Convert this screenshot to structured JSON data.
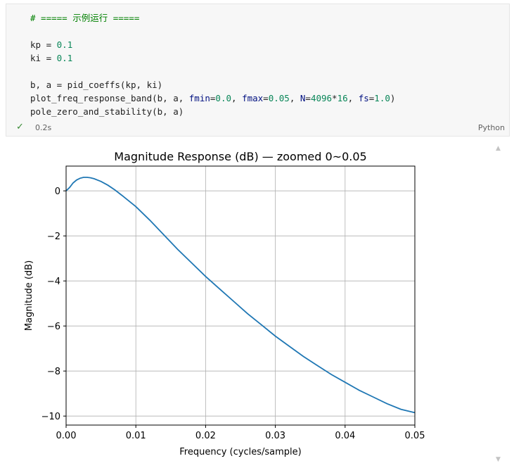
{
  "code_cell": {
    "lines": [
      [
        {
          "t": "# ===== 示例运行 =====",
          "c": "tok-comment"
        }
      ],
      [],
      [
        {
          "t": "kp",
          "c": ""
        },
        {
          "t": " = ",
          "c": "tok-op"
        },
        {
          "t": "0.1",
          "c": "tok-num"
        }
      ],
      [
        {
          "t": "ki",
          "c": ""
        },
        {
          "t": " = ",
          "c": "tok-op"
        },
        {
          "t": "0.1",
          "c": "tok-num"
        }
      ],
      [],
      [
        {
          "t": "b, a = pid_coeffs(kp, ki)",
          "c": ""
        }
      ],
      [
        {
          "t": "plot_freq_response_band(b, a, ",
          "c": ""
        },
        {
          "t": "fmin",
          "c": "tok-param"
        },
        {
          "t": "=",
          "c": ""
        },
        {
          "t": "0.0",
          "c": "tok-num"
        },
        {
          "t": ", ",
          "c": ""
        },
        {
          "t": "fmax",
          "c": "tok-param"
        },
        {
          "t": "=",
          "c": ""
        },
        {
          "t": "0.05",
          "c": "tok-num"
        },
        {
          "t": ", ",
          "c": ""
        },
        {
          "t": "N",
          "c": "tok-param"
        },
        {
          "t": "=",
          "c": ""
        },
        {
          "t": "4096",
          "c": "tok-num"
        },
        {
          "t": "*",
          "c": ""
        },
        {
          "t": "16",
          "c": "tok-num"
        },
        {
          "t": ", ",
          "c": ""
        },
        {
          "t": "fs",
          "c": "tok-param"
        },
        {
          "t": "=",
          "c": ""
        },
        {
          "t": "1.0",
          "c": "tok-num"
        },
        {
          "t": ")",
          "c": ""
        }
      ],
      [
        {
          "t": "pole_zero_and_stability(b, a)",
          "c": ""
        }
      ]
    ],
    "status_icon": "check-icon",
    "exec_time": "0.2s",
    "language": "Python"
  },
  "colors": {
    "line": "#1f77b4",
    "grid": "#b0b0b0",
    "check": "#388a34",
    "cell_bg": "#f7f7f7"
  },
  "chart_data": {
    "type": "line",
    "title": "Magnitude Response (dB) — zoomed 0~0.05",
    "xlabel": "Frequency (cycles/sample)",
    "ylabel": "Magnitude (dB)",
    "xlim": [
      0.0,
      0.05
    ],
    "ylim": [
      -10.4,
      1.1
    ],
    "xticks": [
      0.0,
      0.01,
      0.02,
      0.03,
      0.04,
      0.05
    ],
    "xtick_labels": [
      "0.00",
      "0.01",
      "0.02",
      "0.03",
      "0.04",
      "0.05"
    ],
    "yticks": [
      0,
      -2,
      -4,
      -6,
      -8,
      -10
    ],
    "ytick_labels": [
      "0",
      "−2",
      "−4",
      "−6",
      "−8",
      "−10"
    ],
    "grid": true,
    "series": [
      {
        "x": [
          0.0,
          0.0005,
          0.001,
          0.0015,
          0.002,
          0.0025,
          0.003,
          0.0035,
          0.004,
          0.005,
          0.006,
          0.007,
          0.008,
          0.009,
          0.01,
          0.012,
          0.014,
          0.016,
          0.018,
          0.02,
          0.022,
          0.024,
          0.026,
          0.028,
          0.03,
          0.032,
          0.034,
          0.036,
          0.038,
          0.04,
          0.042,
          0.044,
          0.046,
          0.048,
          0.05
        ],
        "y": [
          0.0,
          0.15,
          0.35,
          0.48,
          0.56,
          0.6,
          0.6,
          0.58,
          0.54,
          0.42,
          0.25,
          0.04,
          -0.2,
          -0.45,
          -0.7,
          -1.3,
          -1.95,
          -2.6,
          -3.2,
          -3.8,
          -4.35,
          -4.9,
          -5.45,
          -5.95,
          -6.45,
          -6.9,
          -7.35,
          -7.75,
          -8.15,
          -8.5,
          -8.85,
          -9.15,
          -9.45,
          -9.7,
          -9.85
        ]
      }
    ]
  }
}
